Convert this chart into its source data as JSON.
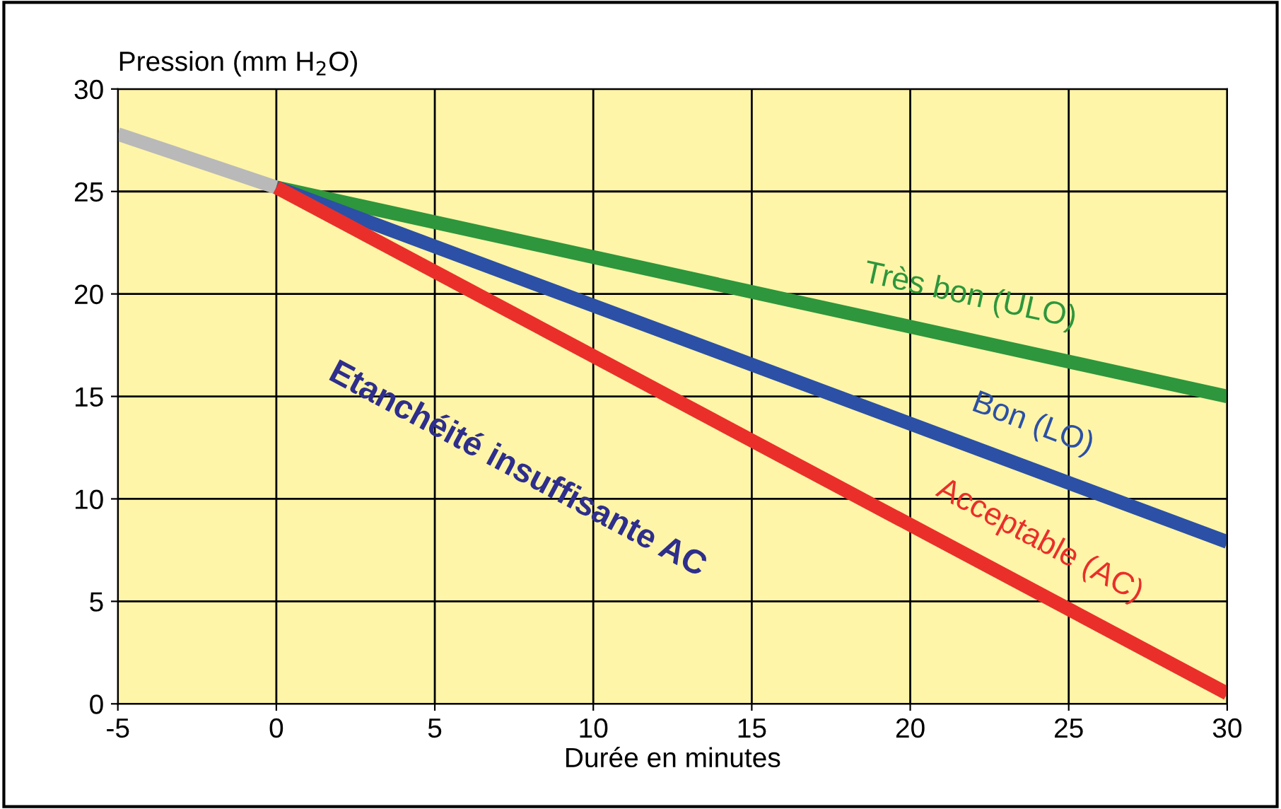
{
  "chart_data": {
    "type": "line",
    "ylabel": "Pression (mm H$_{2}$O)",
    "xlabel": "Durée en minutes",
    "series": [
      {
        "name": null,
        "color": "#b9b9b9",
        "x": [
          -5,
          0
        ],
        "values": [
          27.8,
          25.2
        ]
      },
      {
        "name": "Très bon (ULO)",
        "color": "#2e963c",
        "x": [
          0,
          30
        ],
        "values": [
          25.2,
          15.0
        ]
      },
      {
        "name": "Bon (LO)",
        "color": "#2b50a6",
        "x": [
          0,
          30
        ],
        "values": [
          25.2,
          7.9
        ]
      },
      {
        "name": "Acceptable (AC)",
        "color": "#ea2f2a",
        "x": [
          0,
          30
        ],
        "values": [
          25.2,
          0.5
        ]
      }
    ],
    "annotations": [
      "Etanchéité insuffisante AC"
    ],
    "xlim": [
      -5,
      30
    ],
    "xticks": [
      -5,
      0,
      5,
      10,
      15,
      20,
      25,
      30
    ],
    "ylim": [
      0,
      30
    ],
    "yticks": [
      0,
      5,
      10,
      15,
      20,
      25,
      30
    ],
    "grid": true,
    "legend": false,
    "marker": "none",
    "line_style": "solid"
  }
}
